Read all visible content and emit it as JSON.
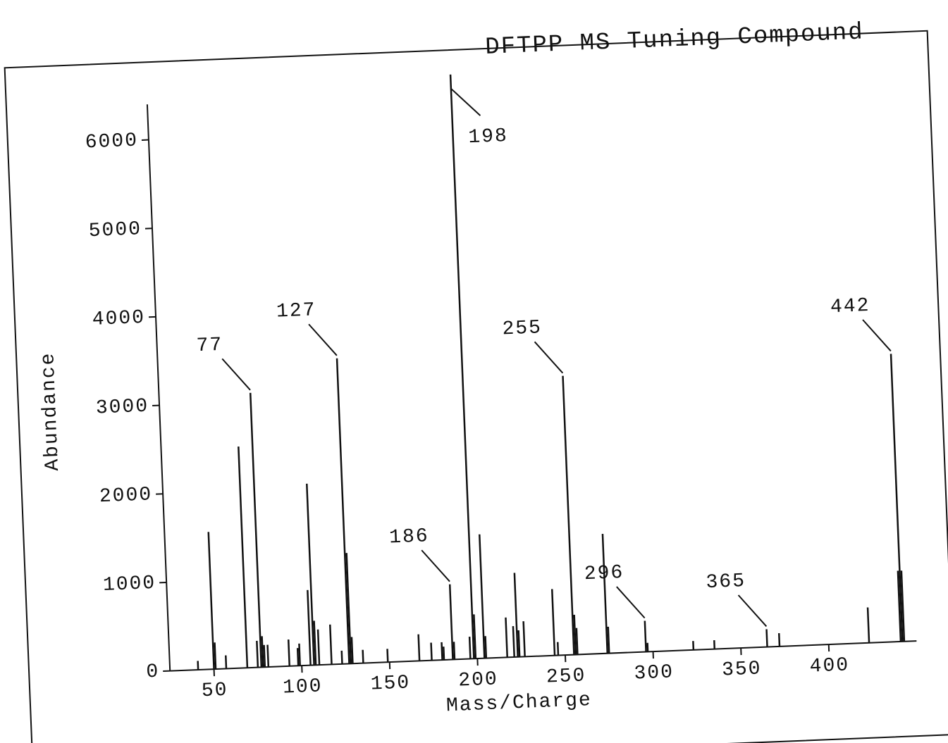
{
  "chart_data": {
    "type": "stem",
    "title": "DFTPP MS Tuning Compound",
    "x_label": "Mass/Charge",
    "y_label": "Abundance",
    "color": "#111111",
    "xlim": [
      35,
      450
    ],
    "ylim": [
      0,
      6400
    ],
    "xticks": [
      50,
      100,
      150,
      200,
      250,
      300,
      350,
      400
    ],
    "yticks": [
      0,
      1000,
      2000,
      3000,
      4000,
      5000,
      6000
    ],
    "x": [
      41,
      50,
      51,
      57,
      69,
      75,
      77,
      78,
      79,
      81,
      93,
      98,
      99,
      105,
      107,
      108,
      110,
      117,
      123,
      127,
      128,
      129,
      135,
      149,
      167,
      174,
      180,
      181,
      186,
      187,
      196,
      198,
      199,
      204,
      205,
      217,
      221,
      223,
      224,
      227,
      244,
      246,
      255,
      256,
      257,
      274,
      275,
      296,
      297,
      323,
      335,
      365,
      372,
      423,
      441,
      442,
      443
    ],
    "values": [
      100,
      1550,
      300,
      150,
      2500,
      300,
      3100,
      350,
      250,
      250,
      300,
      200,
      250,
      850,
      2050,
      500,
      400,
      450,
      150,
      3450,
      1250,
      300,
      150,
      150,
      300,
      200,
      200,
      150,
      850,
      200,
      250,
      6600,
      500,
      1400,
      250,
      450,
      350,
      950,
      300,
      400,
      750,
      150,
      3150,
      450,
      300,
      1350,
      300,
      350,
      100,
      100,
      100,
      200,
      150,
      400,
      800,
      3250,
      800
    ],
    "labeled_peaks": [
      77,
      127,
      186,
      198,
      255,
      296,
      365,
      442
    ]
  }
}
